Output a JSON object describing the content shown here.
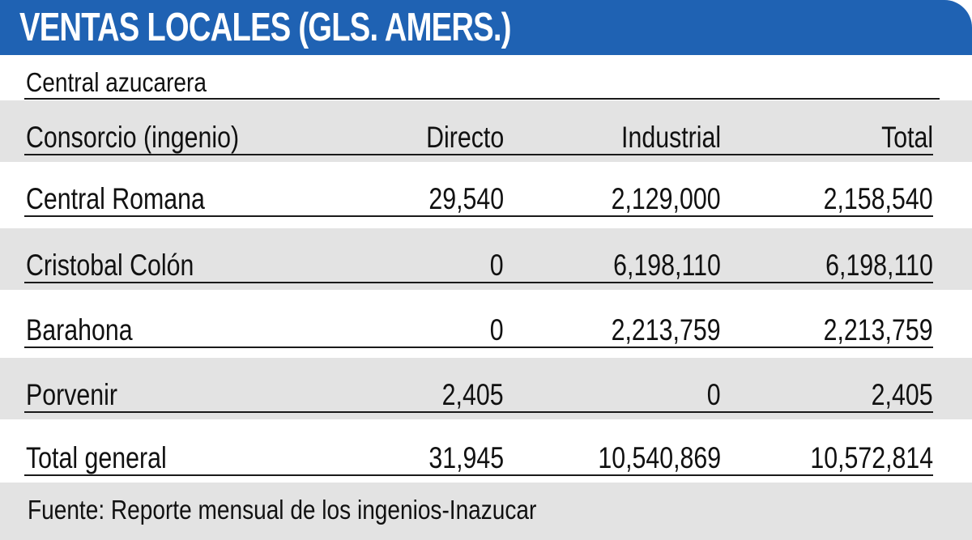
{
  "title": "VENTAS LOCALES (GLS. AMERS.)",
  "subtitle": "Central azucarera",
  "footer": "Fuente: Reporte mensual de los ingenios-Inazucar",
  "colors": {
    "header_blue": "#1f62b3",
    "row_gray": "#e3e3e3"
  },
  "chart_data": {
    "type": "table",
    "title": "VENTAS LOCALES (GLS. AMERS.)",
    "subtitle": "Central azucarera",
    "columns": [
      "Consorcio (ingenio)",
      "Directo",
      "Industrial",
      "Total"
    ],
    "rows": [
      [
        "Central Romana",
        "29,540",
        "2,129,000",
        "2,158,540"
      ],
      [
        "Cristobal Colón",
        "0",
        "6,198,110",
        "6,198,110"
      ],
      [
        "Barahona",
        "0",
        "2,213,759",
        "2,213,759"
      ],
      [
        "Porvenir",
        "2,405",
        "0",
        "2,405"
      ],
      [
        "Total general",
        "31,945",
        "10,540,869",
        "10,572,814"
      ]
    ],
    "source": "Fuente: Reporte mensual de los ingenios-Inazucar"
  }
}
